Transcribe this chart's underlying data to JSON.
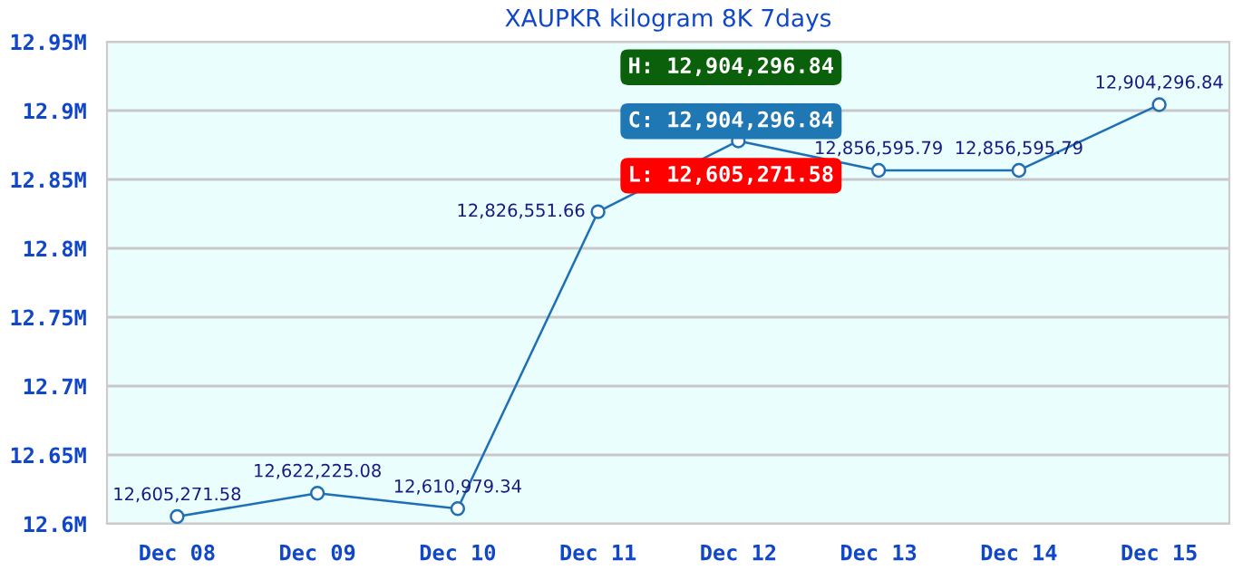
{
  "chart_data": {
    "type": "line",
    "title": "XAUPKR kilogram 8K 7days",
    "categories": [
      "Dec 08",
      "Dec 09",
      "Dec 10",
      "Dec 11",
      "Dec 12",
      "Dec 13",
      "Dec 14",
      "Dec 15"
    ],
    "series": [
      {
        "color": "#1f6fb5",
        "values": [
          12605271.58,
          12622225.08,
          12610979.34,
          12826551.66,
          12878000,
          12856595.79,
          12856595.79,
          12904296.84
        ],
        "value_labels": [
          "12,605,271.58",
          "12,622,225.08",
          "12,610,979.34",
          "12,826,551.66",
          null,
          "12,856,595.79",
          "12,856,595.79",
          "12,904,296.84"
        ]
      }
    ],
    "ylim": [
      12600000,
      12950000
    ],
    "yticks": [
      {
        "value": 12600000,
        "label": "12.6M"
      },
      {
        "value": 12650000,
        "label": "12.65M"
      },
      {
        "value": 12700000,
        "label": "12.7M"
      },
      {
        "value": 12750000,
        "label": "12.75M"
      },
      {
        "value": 12800000,
        "label": "12.8M"
      },
      {
        "value": 12850000,
        "label": "12.85M"
      },
      {
        "value": 12900000,
        "label": "12.9M"
      },
      {
        "value": 12950000,
        "label": "12.95M"
      }
    ],
    "grid": "y",
    "marker": "circle",
    "line_style": "solid",
    "annotations": [
      "H: 12,904,296.84",
      "C: 12,904,296.84",
      "L: 12,605,271.58"
    ]
  }
}
